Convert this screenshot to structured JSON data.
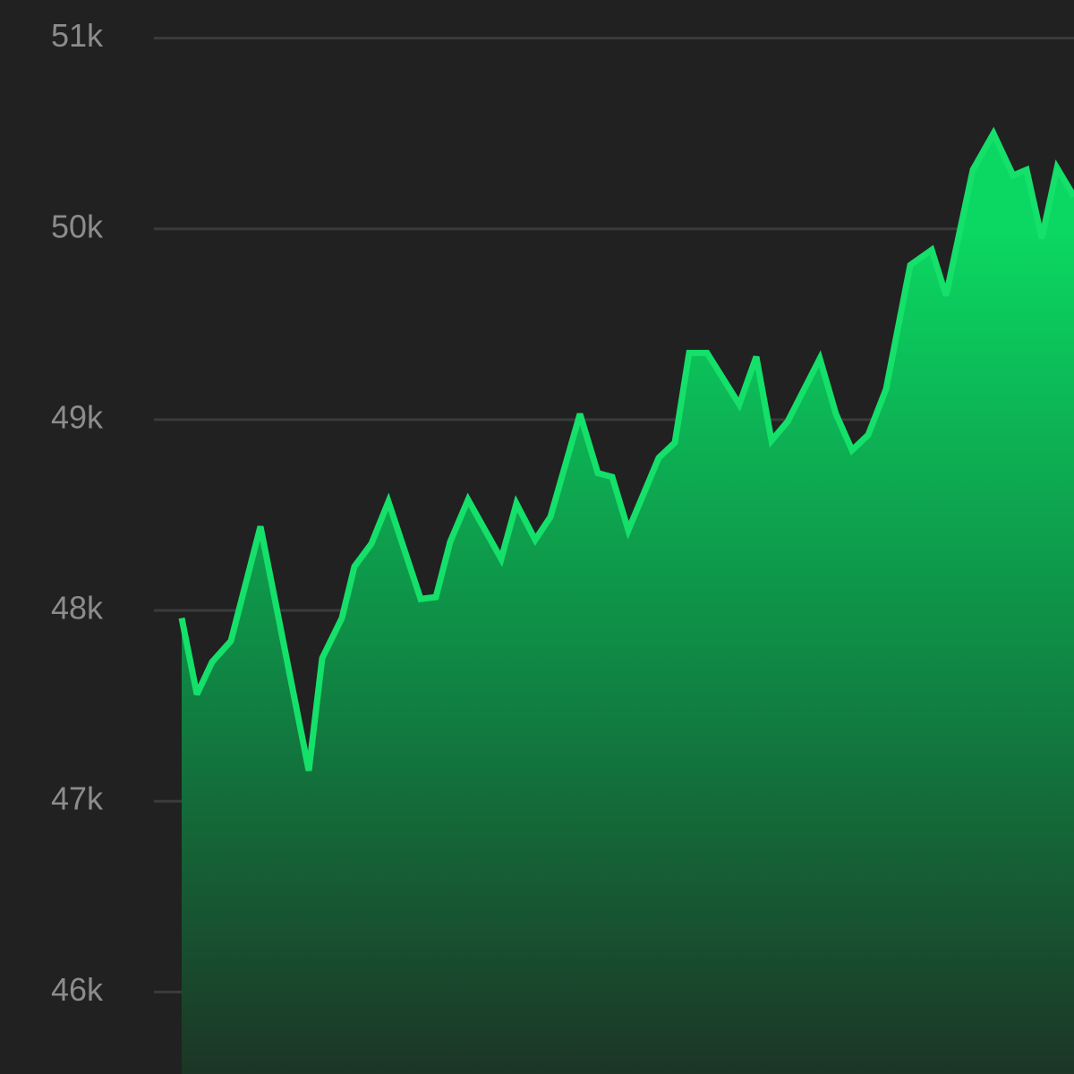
{
  "chart_data": {
    "type": "area",
    "x": [
      0,
      17,
      34,
      55,
      88,
      142,
      157,
      179,
      193,
      212,
      231,
      267,
      284,
      300,
      320,
      357,
      374,
      395,
      412,
      445,
      465,
      481,
      499,
      533,
      551,
      567,
      587,
      623,
      642,
      659,
      677,
      713,
      731,
      749,
      767,
      787,
      814,
      838,
      854,
      884,
      907,
      929,
      944,
      961,
      978,
      997
    ],
    "series": [
      {
        "color": "#14e06a",
        "values": [
          47960,
          47560,
          47730,
          47840,
          48440,
          47160,
          47750,
          47960,
          48230,
          48350,
          48570,
          48060,
          48070,
          48360,
          48580,
          48270,
          48560,
          48370,
          48490,
          49030,
          48720,
          48700,
          48420,
          48800,
          48880,
          49350,
          49350,
          49080,
          49330,
          48890,
          48990,
          49320,
          49030,
          48840,
          48920,
          49160,
          49810,
          49890,
          49650,
          50310,
          50500,
          50280,
          50310,
          49950,
          50320,
          50170
        ]
      }
    ],
    "xlim": [
      -203,
      997
    ],
    "ylim": [
      45570,
      51200
    ],
    "yticks": [
      {
        "value": 51000,
        "label": "51k"
      },
      {
        "value": 50000,
        "label": "50k"
      },
      {
        "value": 49000,
        "label": "49k"
      },
      {
        "value": 48000,
        "label": "48k"
      },
      {
        "value": 47000,
        "label": "47k"
      },
      {
        "value": 46000,
        "label": "46k"
      }
    ],
    "grid": true
  }
}
